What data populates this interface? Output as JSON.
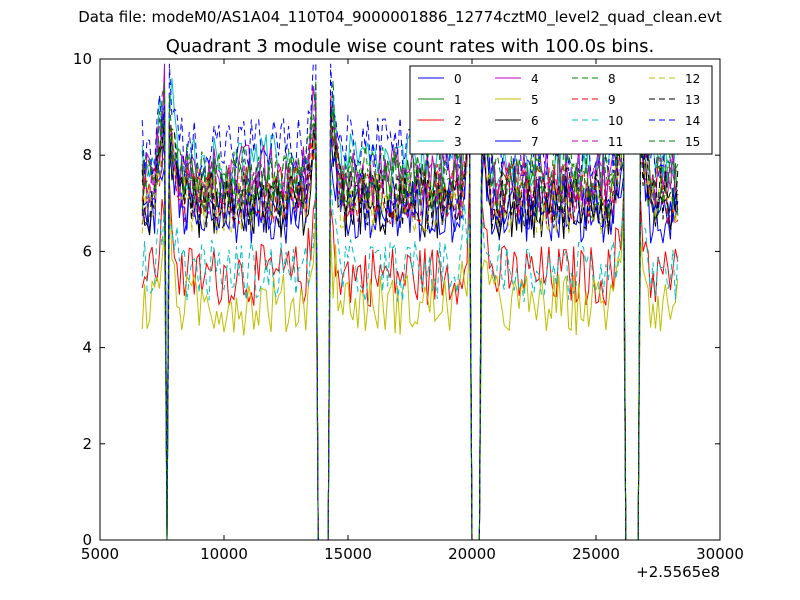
{
  "header": {
    "suptitle": "Data file: modeM0/AS1A04_110T04_9000001886_12774cztM0_level2_quad_clean.evt",
    "title": "Quadrant 3 module wise count rates with 100.0s bins."
  },
  "chart_data": {
    "type": "line",
    "title": "Quadrant 3 module wise count rates with 100.0s bins.",
    "xlabel": "",
    "ylabel": "",
    "xlim": [
      5000,
      30000
    ],
    "ylim": [
      0,
      10
    ],
    "x_ticks": [
      5000,
      10000,
      15000,
      20000,
      25000,
      30000
    ],
    "y_ticks": [
      0,
      2,
      4,
      6,
      8,
      10
    ],
    "x_offset_label": "+2.5565e8",
    "legend_position": "top-right",
    "legend_columns": 4,
    "bin_seconds": 100,
    "x_range": [
      6700,
      28300
    ],
    "gaps": [
      [
        7600,
        7800
      ],
      [
        13700,
        14300
      ],
      [
        19900,
        20400
      ],
      [
        26100,
        26800
      ]
    ],
    "series": [
      {
        "name": "0",
        "color": "#0000ff",
        "dash": "solid",
        "level": 6.8
      },
      {
        "name": "1",
        "color": "#008000",
        "dash": "solid",
        "level": 7.3
      },
      {
        "name": "2",
        "color": "#ff0000",
        "dash": "solid",
        "level": 5.5
      },
      {
        "name": "3",
        "color": "#00bfbf",
        "dash": "solid",
        "level": 7.8
      },
      {
        "name": "4",
        "color": "#bf00bf",
        "dash": "solid",
        "level": 7.6
      },
      {
        "name": "5",
        "color": "#bfbf00",
        "dash": "solid",
        "level": 4.9
      },
      {
        "name": "6",
        "color": "#000000",
        "dash": "solid",
        "level": 6.9
      },
      {
        "name": "7",
        "color": "#0000ff",
        "dash": "solid",
        "level": 7.0
      },
      {
        "name": "8",
        "color": "#008000",
        "dash": "dashed",
        "level": 7.6
      },
      {
        "name": "9",
        "color": "#ff0000",
        "dash": "dashed",
        "level": 7.2
      },
      {
        "name": "10",
        "color": "#00bfbf",
        "dash": "dashed",
        "level": 5.6
      },
      {
        "name": "11",
        "color": "#bf00bf",
        "dash": "dashed",
        "level": 7.3
      },
      {
        "name": "12",
        "color": "#bfbf00",
        "dash": "dashed",
        "level": 7.0
      },
      {
        "name": "13",
        "color": "#000000",
        "dash": "dashed",
        "level": 7.1
      },
      {
        "name": "14",
        "color": "#0000ff",
        "dash": "dashed",
        "level": 8.2
      },
      {
        "name": "15",
        "color": "#008000",
        "dash": "dashed",
        "level": 7.5
      }
    ]
  }
}
